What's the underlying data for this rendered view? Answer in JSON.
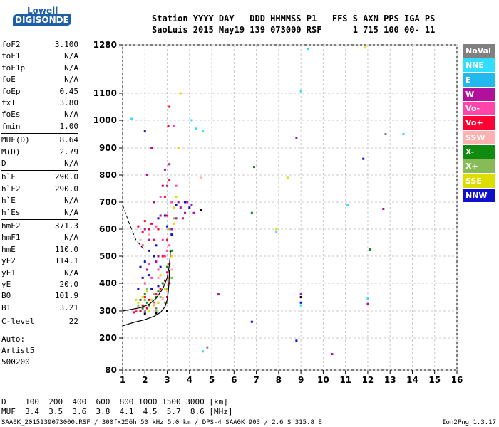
{
  "logo": {
    "top": "Lowell",
    "bottom": "DIGISONDE"
  },
  "header": {
    "line1": "Station YYYY DAY   DDD HHMMSS P1   FFS S AXN PPS IGA PS",
    "line2": "SaoLuis 2015 May19 139 073000 RSF      1 715 100 00- 11"
  },
  "params_group1": [
    {
      "k": "foF2",
      "v": "3.100"
    },
    {
      "k": "foF1",
      "v": "N/A"
    },
    {
      "k": "foF1p",
      "v": "N/A"
    },
    {
      "k": "foE",
      "v": "N/A"
    },
    {
      "k": "foEp",
      "v": "0.45"
    },
    {
      "k": "fxI",
      "v": "3.80"
    },
    {
      "k": "foEs",
      "v": "N/A"
    },
    {
      "k": "fmin",
      "v": "1.00"
    }
  ],
  "params_group2": [
    {
      "k": "MUF(D)",
      "v": "8.64"
    },
    {
      "k": "M(D)",
      "v": "2.79"
    },
    {
      "k": "D",
      "v": "N/A"
    }
  ],
  "params_group3": [
    {
      "k": "h`F",
      "v": "290.0"
    },
    {
      "k": "h`F2",
      "v": "290.0"
    },
    {
      "k": "h`E",
      "v": "N/A"
    },
    {
      "k": "h`Es",
      "v": "N/A"
    }
  ],
  "params_group4": [
    {
      "k": "hmF2",
      "v": "371.3"
    },
    {
      "k": "hmF1",
      "v": "N/A"
    },
    {
      "k": "hmE",
      "v": "110.0"
    },
    {
      "k": "yF2",
      "v": "114.1"
    },
    {
      "k": "yF1",
      "v": "N/A"
    },
    {
      "k": "yE",
      "v": "20.0"
    },
    {
      "k": "B0",
      "v": "101.9"
    },
    {
      "k": "B1",
      "v": "3.21"
    }
  ],
  "params_group5": [
    {
      "k": "C-level",
      "v": "22"
    }
  ],
  "autoscale": {
    "line1": "Auto:",
    "line2": "Artist5",
    "line3": "500200"
  },
  "legend": [
    {
      "label": "NoVal",
      "color": "#808080"
    },
    {
      "label": "NNE",
      "color": "#33ddff"
    },
    {
      "label": "E",
      "color": "#22b8ee"
    },
    {
      "label": "W",
      "color": "#b0109a"
    },
    {
      "label": "Vo-",
      "color": "#ff44aa"
    },
    {
      "label": "Vo+",
      "color": "#ff0033"
    },
    {
      "label": "SSW",
      "color": "#ffb0b0"
    },
    {
      "label": "X-",
      "color": "#108a10"
    },
    {
      "label": "X+",
      "color": "#88bb55"
    },
    {
      "label": "SSE",
      "color": "#dddd00"
    },
    {
      "label": "NNW",
      "color": "#1010cc"
    }
  ],
  "muf_table": {
    "row1": "D    100  200  400  600  800 1000 1500 3000 [km]",
    "row2": "MUF  3.4  3.5  3.6  3.8  4.1  4.5  5.7  8.6 [MHz]"
  },
  "footer": {
    "left": "SAA0K_2015139073000.RSF / 300fx256h 50 kHz 5.0 km / DPS-4 SAA0K 903 / 2.6 S 315.8 E",
    "right": "Ion2Png 1.3.17"
  },
  "chart_data": {
    "type": "scatter",
    "xlim": [
      1,
      16
    ],
    "ylim": [
      80,
      1280
    ],
    "x_ticks": [
      1,
      2,
      3,
      4,
      5,
      6,
      7,
      8,
      9,
      10,
      11,
      12,
      13,
      14,
      15,
      16
    ],
    "y_ticks": [
      80,
      200,
      300,
      400,
      500,
      600,
      700,
      800,
      900,
      1000,
      1100,
      1280
    ],
    "grid": true,
    "traces": [
      {
        "name": "profile",
        "points": [
          [
            1.0,
            245
          ],
          [
            1.5,
            258
          ],
          [
            2.0,
            268
          ],
          [
            2.4,
            280
          ],
          [
            2.7,
            295
          ],
          [
            2.9,
            315
          ],
          [
            3.0,
            340
          ],
          [
            3.05,
            371
          ],
          [
            3.08,
            400
          ],
          [
            3.1,
            450
          ]
        ]
      },
      {
        "name": "trace",
        "points": [
          [
            1.0,
            300
          ],
          [
            1.4,
            306
          ],
          [
            1.8,
            312
          ],
          [
            2.2,
            325
          ],
          [
            2.5,
            345
          ],
          [
            2.8,
            380
          ],
          [
            3.0,
            420
          ],
          [
            3.1,
            470
          ],
          [
            3.15,
            520
          ]
        ]
      }
    ],
    "dashed_line": [
      [
        1.0,
        690
      ],
      [
        1.3,
        620
      ],
      [
        1.6,
        560
      ],
      [
        2.0,
        520
      ]
    ],
    "scatter_groups": [
      {
        "color": "#ff0033",
        "points": [
          [
            1.6,
            300
          ],
          [
            1.9,
            320
          ],
          [
            2.2,
            340
          ],
          [
            2.5,
            360
          ],
          [
            2.7,
            380
          ],
          [
            2.9,
            410
          ],
          [
            3.0,
            440
          ],
          [
            3.1,
            470
          ],
          [
            2.8,
            500
          ],
          [
            3.0,
            560
          ],
          [
            2.6,
            600
          ],
          [
            3.0,
            650
          ],
          [
            2.9,
            720
          ],
          [
            3.1,
            780
          ],
          [
            2.4,
            560
          ],
          [
            1.8,
            300
          ],
          [
            2.1,
            310
          ],
          [
            2.6,
            330
          ],
          [
            3.0,
            350
          ],
          [
            3.1,
            400
          ],
          [
            2.2,
            600
          ],
          [
            2.3,
            620
          ],
          [
            1.9,
            590
          ],
          [
            1.7,
            610
          ],
          [
            2.0,
            630
          ],
          [
            3.05,
            980
          ],
          [
            3.1,
            1050
          ],
          [
            2.8,
            760
          ],
          [
            2.0,
            350
          ],
          [
            2.4,
            330
          ],
          [
            1.5,
            295
          ],
          [
            3.15,
            520
          ]
        ]
      },
      {
        "color": "#b0109a",
        "points": [
          [
            2.0,
            600
          ],
          [
            2.2,
            560
          ],
          [
            2.6,
            500
          ],
          [
            3.4,
            640
          ],
          [
            3.6,
            680
          ],
          [
            3.8,
            660
          ],
          [
            3.9,
            700
          ],
          [
            4.1,
            690
          ],
          [
            2.9,
            820
          ],
          [
            3.1,
            840
          ],
          [
            2.3,
            900
          ],
          [
            2.4,
            700
          ],
          [
            2.1,
            450
          ],
          [
            2.6,
            420
          ],
          [
            3.2,
            600
          ],
          [
            3.0,
            760
          ],
          [
            2.1,
            800
          ],
          [
            2.7,
            650
          ],
          [
            3.7,
            640
          ],
          [
            4.2,
            660
          ],
          [
            5.3,
            360
          ],
          [
            9.0,
            360
          ],
          [
            8.8,
            935
          ],
          [
            12.7,
            675
          ],
          [
            12.0,
            325
          ],
          [
            10.4,
            140
          ],
          [
            3.5,
            700
          ],
          [
            2.5,
            480
          ]
        ]
      },
      {
        "color": "#1010cc",
        "points": [
          [
            1.8,
            460
          ],
          [
            2.0,
            480
          ],
          [
            2.2,
            430
          ],
          [
            2.4,
            500
          ],
          [
            1.9,
            420
          ],
          [
            2.5,
            540
          ],
          [
            2.7,
            460
          ],
          [
            3.4,
            690
          ],
          [
            3.8,
            700
          ],
          [
            4.0,
            680
          ],
          [
            2.6,
            390
          ],
          [
            1.7,
            380
          ],
          [
            2.3,
            380
          ],
          [
            2.0,
            960
          ],
          [
            2.9,
            650
          ],
          [
            3.2,
            580
          ],
          [
            9.0,
            330
          ],
          [
            8.8,
            190
          ],
          [
            11.8,
            860
          ],
          [
            6.8,
            260
          ],
          [
            2.2,
            520
          ],
          [
            3.0,
            610
          ],
          [
            2.6,
            640
          ]
        ]
      },
      {
        "color": "#dddd00",
        "points": [
          [
            1.7,
            330
          ],
          [
            1.9,
            350
          ],
          [
            2.1,
            370
          ],
          [
            2.3,
            340
          ],
          [
            2.6,
            330
          ],
          [
            3.1,
            420
          ],
          [
            3.2,
            500
          ],
          [
            3.4,
            720
          ],
          [
            3.5,
            900
          ],
          [
            3.6,
            1100
          ],
          [
            3.3,
            620
          ],
          [
            2.9,
            380
          ],
          [
            1.6,
            340
          ],
          [
            3.0,
            300
          ],
          [
            2.2,
            300
          ],
          [
            2.4,
            320
          ],
          [
            8.4,
            790
          ],
          [
            11.9,
            1270
          ],
          [
            7.9,
            600
          ],
          [
            3.3,
            680
          ],
          [
            2.7,
            430
          ]
        ]
      },
      {
        "color": "#108a10",
        "points": [
          [
            1.8,
            340
          ],
          [
            2.0,
            360
          ],
          [
            2.2,
            320
          ],
          [
            2.5,
            350
          ],
          [
            2.8,
            400
          ],
          [
            3.0,
            460
          ],
          [
            6.8,
            660
          ],
          [
            6.9,
            830
          ],
          [
            12.1,
            525
          ],
          [
            3.2,
            520
          ],
          [
            2.1,
            330
          ],
          [
            2.6,
            370
          ],
          [
            1.9,
            310
          ]
        ]
      },
      {
        "color": "#33ddff",
        "points": [
          [
            4.3,
            970
          ],
          [
            4.6,
            960
          ],
          [
            9.3,
            1265
          ],
          [
            9.0,
            1108
          ],
          [
            12.0,
            345
          ],
          [
            11.1,
            690
          ],
          [
            13.6,
            950
          ],
          [
            4.6,
            150
          ],
          [
            9.0,
            320
          ],
          [
            7.9,
            590
          ],
          [
            1.4,
            1005
          ],
          [
            4.1,
            1000
          ]
        ]
      },
      {
        "color": "#ff44aa",
        "points": [
          [
            2.3,
            420
          ],
          [
            2.6,
            450
          ],
          [
            2.9,
            500
          ],
          [
            3.1,
            540
          ],
          [
            2.0,
            400
          ],
          [
            2.8,
            560
          ],
          [
            3.2,
            700
          ],
          [
            3.4,
            760
          ],
          [
            2.5,
            610
          ],
          [
            3.3,
            980
          ],
          [
            2.7,
            720
          ],
          [
            1.9,
            540
          ],
          [
            2.2,
            470
          ],
          [
            3.0,
            520
          ]
        ]
      },
      {
        "color": "#88bb55",
        "points": [
          [
            1.7,
            320
          ],
          [
            2.0,
            340
          ],
          [
            2.4,
            360
          ],
          [
            2.7,
            350
          ],
          [
            3.0,
            380
          ],
          [
            3.2,
            420
          ],
          [
            2.5,
            300
          ],
          [
            2.9,
            330
          ],
          [
            3.1,
            600
          ],
          [
            3.3,
            640
          ],
          [
            2.1,
            380
          ]
        ]
      },
      {
        "color": "#ffb0b0",
        "points": [
          [
            1.6,
            305
          ],
          [
            2.0,
            315
          ],
          [
            2.4,
            325
          ],
          [
            2.8,
            345
          ],
          [
            3.0,
            370
          ],
          [
            2.2,
            580
          ],
          [
            1.8,
            560
          ],
          [
            2.6,
            420
          ],
          [
            3.2,
            450
          ],
          [
            4.5,
            790
          ]
        ]
      },
      {
        "color": "#808080",
        "points": [
          [
            2.0,
            300
          ],
          [
            2.5,
            310
          ],
          [
            3.0,
            330
          ],
          [
            4.8,
            165
          ],
          [
            12.8,
            950
          ]
        ]
      },
      {
        "color": "#000000",
        "points": [
          [
            2.0,
            290
          ],
          [
            2.5,
            292
          ],
          [
            3.0,
            300
          ],
          [
            4.5,
            670
          ],
          [
            9.0,
            350
          ]
        ]
      }
    ]
  }
}
